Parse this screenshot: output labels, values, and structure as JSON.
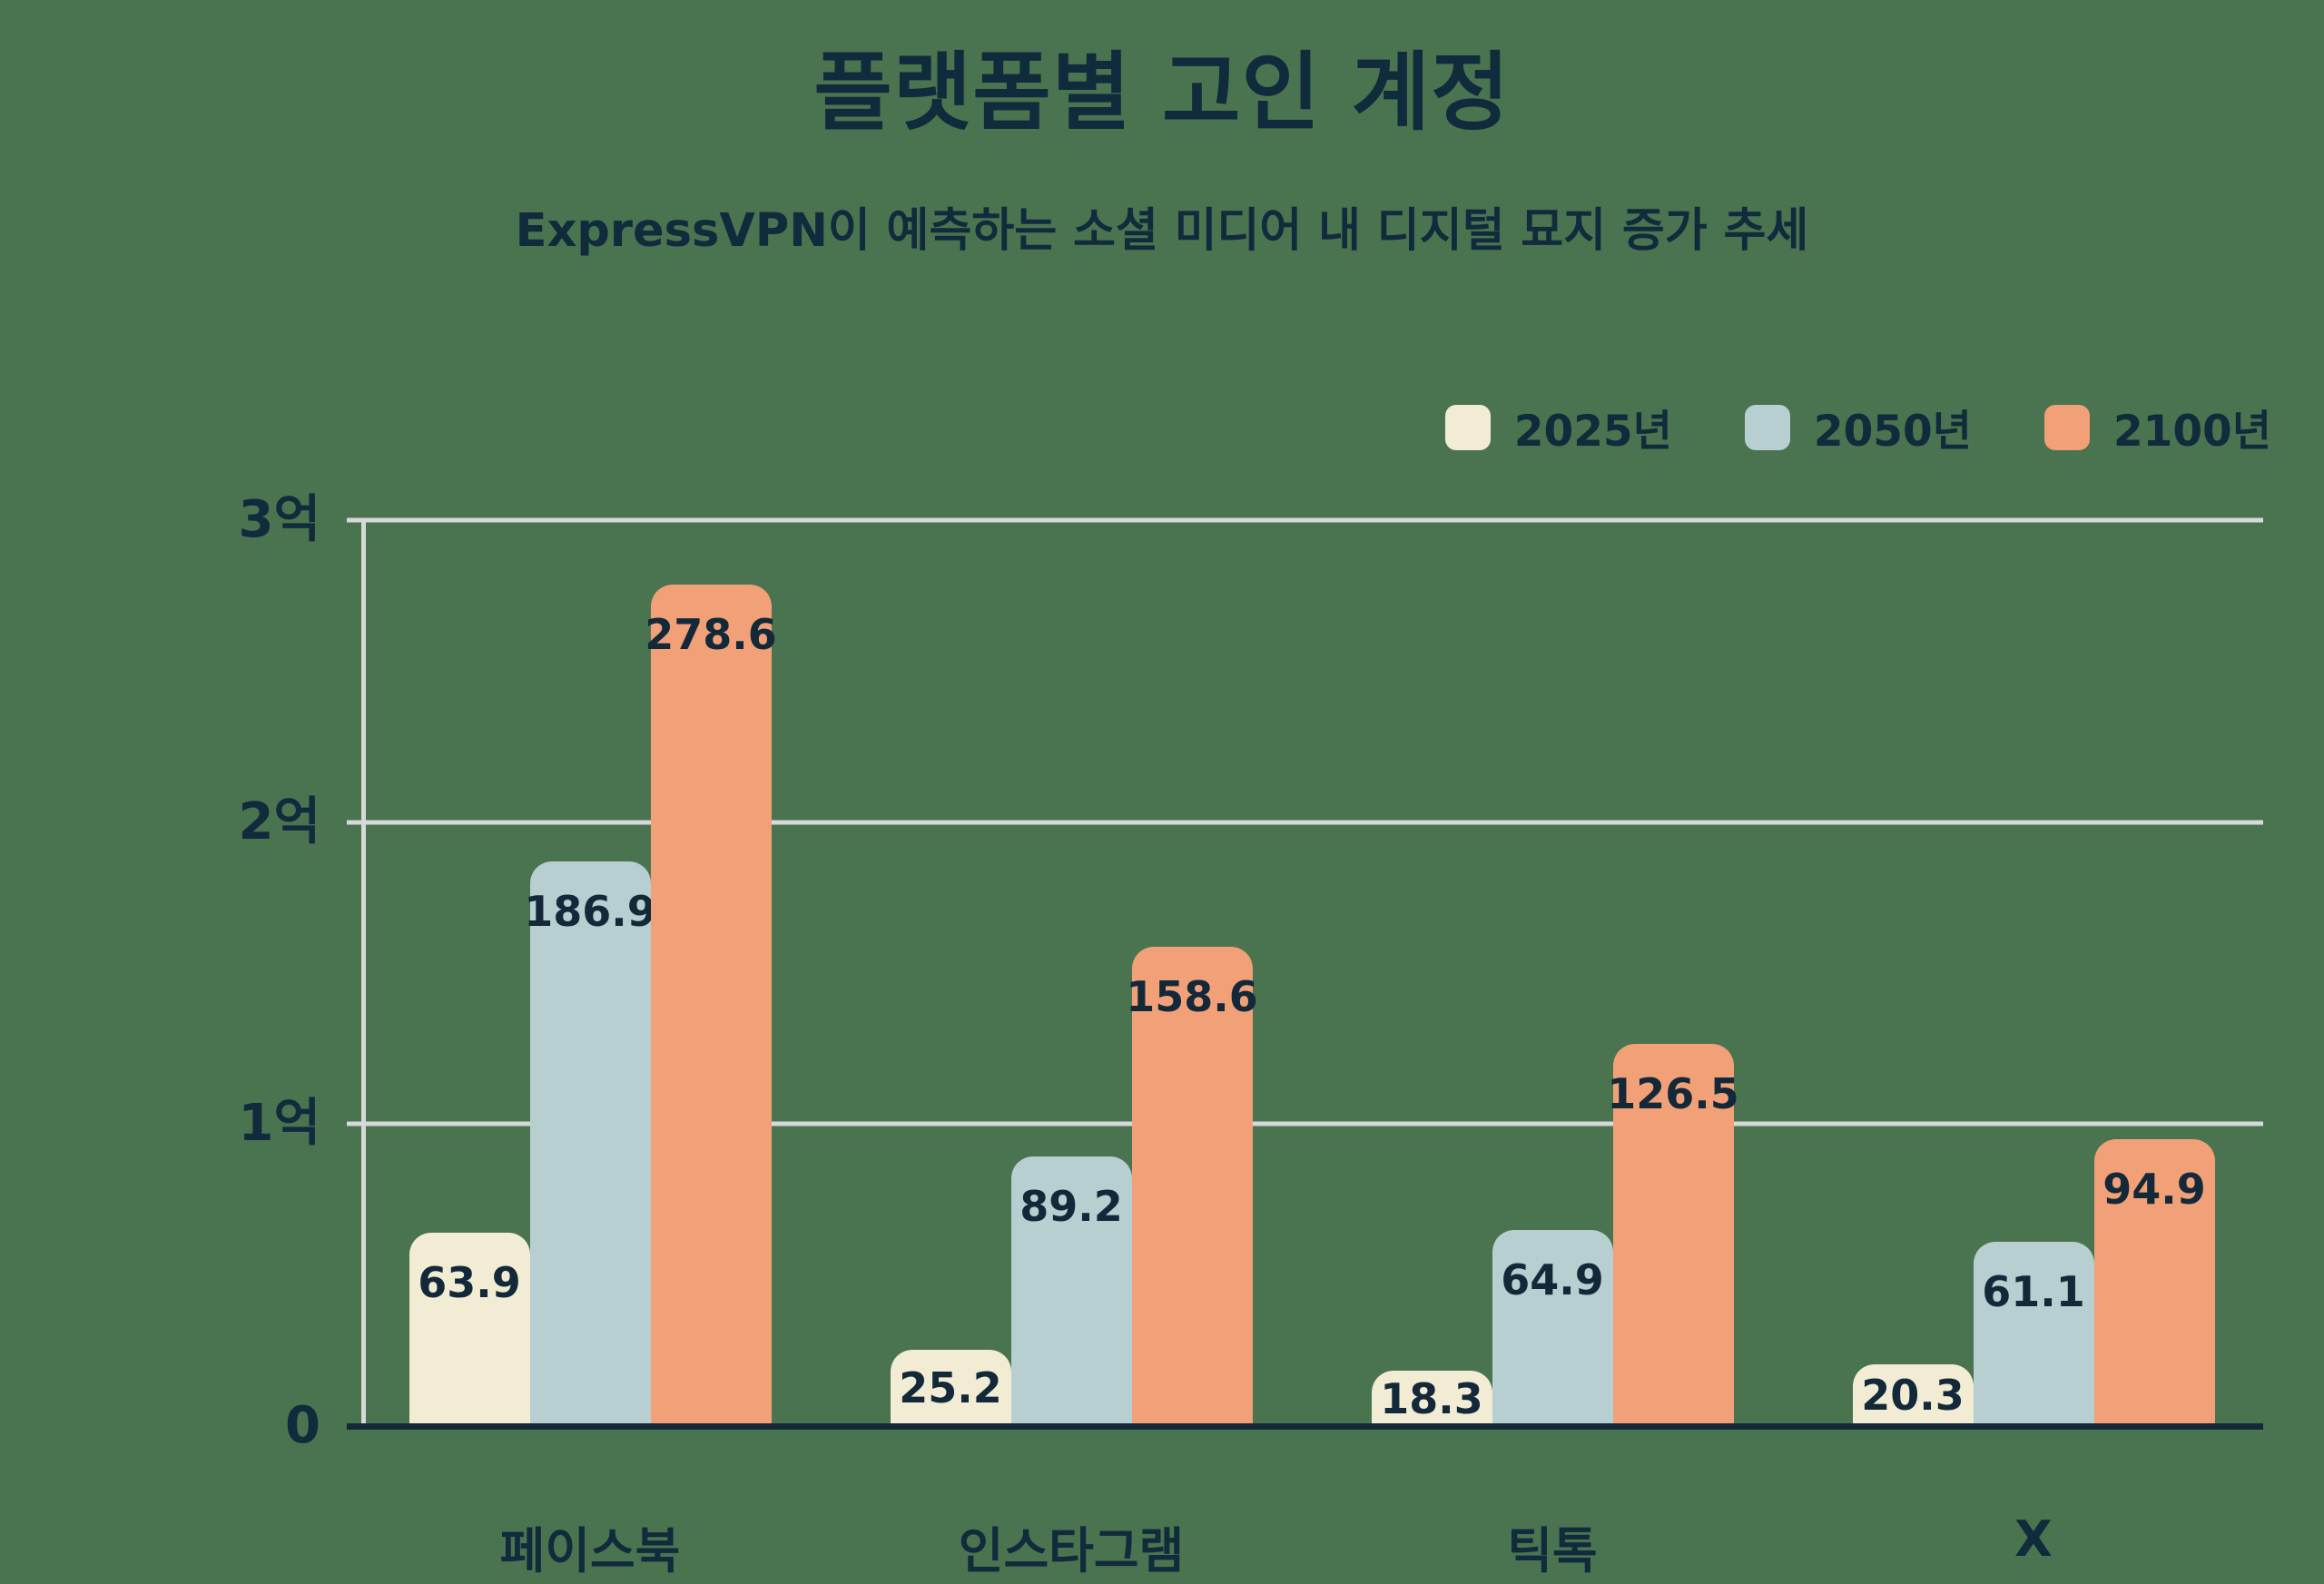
{
  "title": "플랫폼별 고인 계정",
  "subtitle": "ExpressVPN이 예측하는 소셜 미디어 내 디지털 묘지 증가 추세",
  "colors": {
    "background": "#4a734f",
    "text_navy": "#102b3c",
    "gridline": "#d6d8d9",
    "axis_line": "#13293a",
    "series_2025": "#f1ecd3",
    "series_2050": "#b7cfd1",
    "series_2100": "#f2a077"
  },
  "chart_data": {
    "type": "bar",
    "categories": [
      "페이스북",
      "인스타그램",
      "틱톡",
      "X"
    ],
    "series": [
      {
        "name": "2025년",
        "color": "#f1ecd3",
        "values": [
          63.9,
          25.2,
          18.3,
          20.3
        ]
      },
      {
        "name": "2050년",
        "color": "#b7cfd1",
        "values": [
          186.9,
          89.2,
          64.9,
          61.1
        ]
      },
      {
        "name": "2100년",
        "color": "#f2a077",
        "values": [
          278.6,
          158.6,
          126.5,
          94.9
        ]
      }
    ],
    "y_ticks": [
      {
        "value": 0,
        "label": "0"
      },
      {
        "value": 100,
        "label": "1억"
      },
      {
        "value": 200,
        "label": "2억"
      },
      {
        "value": 300,
        "label": "3억"
      }
    ],
    "ylim": [
      0,
      300
    ],
    "grid": true,
    "legend_position": "top-right",
    "value_labels": true
  }
}
